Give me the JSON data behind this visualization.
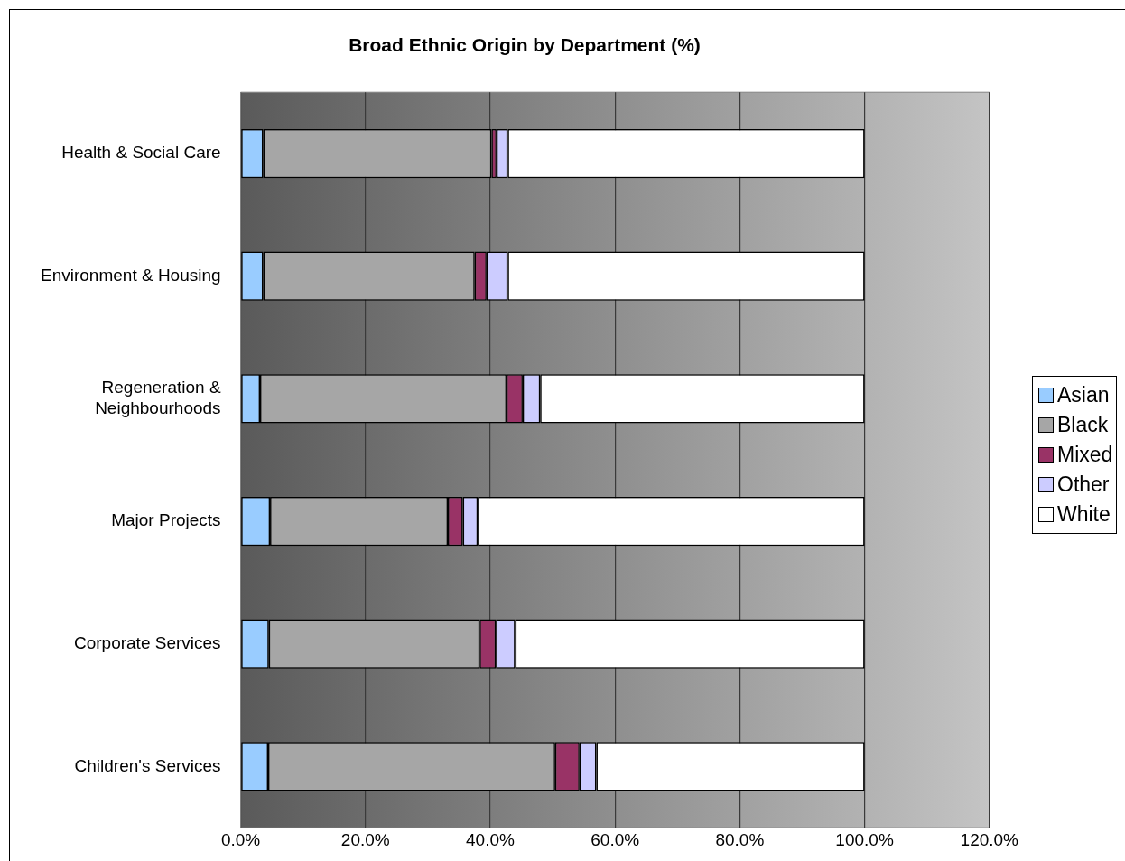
{
  "chart_data": {
    "type": "bar",
    "orientation": "horizontal",
    "stacked": true,
    "title": "Broad Ethnic Origin by Department (%)",
    "categories": [
      "Health & Social Care",
      "Environment & Housing",
      "Regeneration & Neighbourhoods",
      "Major Projects",
      "Corporate Services",
      "Children's Services"
    ],
    "series": [
      {
        "name": "Asian",
        "color": "#99ccff",
        "values": [
          3.6,
          3.6,
          3.1,
          4.7,
          4.5,
          4.4
        ]
      },
      {
        "name": "Black",
        "color": "#a6a6a6",
        "values": [
          36.6,
          33.9,
          39.5,
          28.5,
          33.8,
          46.0
        ]
      },
      {
        "name": "Mixed",
        "color": "#993366",
        "values": [
          0.8,
          1.9,
          2.6,
          2.4,
          2.6,
          3.9
        ]
      },
      {
        "name": "Other",
        "color": "#ccccff",
        "values": [
          1.8,
          3.4,
          2.8,
          2.4,
          3.1,
          2.7
        ]
      },
      {
        "name": "White",
        "color": "#ffffff",
        "values": [
          57.2,
          57.2,
          52.0,
          62.0,
          56.0,
          43.0
        ]
      }
    ],
    "xlim": [
      0,
      120
    ],
    "xticks": [
      {
        "value": 0,
        "label": "0.0%"
      },
      {
        "value": 20,
        "label": "20.0%"
      },
      {
        "value": 40,
        "label": "40.0%"
      },
      {
        "value": 60,
        "label": "60.0%"
      },
      {
        "value": 80,
        "label": "80.0%"
      },
      {
        "value": 100,
        "label": "100.0%"
      },
      {
        "value": 120,
        "label": "120.0%"
      }
    ],
    "grid": "x",
    "legend": "right"
  }
}
